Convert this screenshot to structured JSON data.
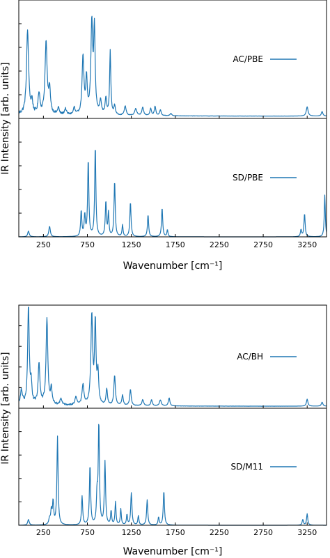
{
  "chart_data": [
    {
      "type": "line",
      "figure_group": "top",
      "xlabel": "Wavenumber [cm⁻¹]",
      "ylabel": "IR Intensity [arb. units]",
      "xlim": [
        -30,
        3470
      ],
      "xticks": [
        250,
        750,
        1250,
        1750,
        2250,
        2750,
        3250
      ],
      "tick_labels": [
        "250",
        "750",
        "1250",
        "1750",
        "2250",
        "2750",
        "3250"
      ],
      "panels": [
        {
          "legend": "AC/PBE",
          "legend_position": "right",
          "line_color": "#1f77b4",
          "ylim": [
            0,
            1.0
          ],
          "baseline": 0.02,
          "noise": 0.03,
          "peaks": [
            [
              70,
              0.72,
              14
            ],
            [
              120,
              0.1,
              10
            ],
            [
              200,
              0.18,
              12
            ],
            [
              280,
              0.62,
              14
            ],
            [
              320,
              0.2,
              12
            ],
            [
              420,
              0.06,
              10
            ],
            [
              500,
              0.05,
              12
            ],
            [
              600,
              0.06,
              10
            ],
            [
              700,
              0.5,
              12
            ],
            [
              740,
              0.3,
              10
            ],
            [
              800,
              0.78,
              12
            ],
            [
              830,
              0.72,
              10
            ],
            [
              900,
              0.12,
              12
            ],
            [
              960,
              0.14,
              10
            ],
            [
              1010,
              0.55,
              8
            ],
            [
              1060,
              0.08,
              10
            ],
            [
              1180,
              0.08,
              12
            ],
            [
              1300,
              0.06,
              14
            ],
            [
              1380,
              0.07,
              12
            ],
            [
              1470,
              0.06,
              10
            ],
            [
              1520,
              0.08,
              10
            ],
            [
              1580,
              0.05,
              10
            ],
            [
              1700,
              0.02,
              12
            ],
            [
              3250,
              0.08,
              12
            ],
            [
              3420,
              0.04,
              10
            ]
          ]
        },
        {
          "legend": "SD/PBE",
          "legend_position": "right",
          "line_color": "#1f77b4",
          "ylim": [
            0,
            1.0
          ],
          "baseline": 0.0,
          "noise": 0.0,
          "peaks": [
            [
              80,
              0.05,
              10
            ],
            [
              320,
              0.09,
              10
            ],
            [
              680,
              0.22,
              8
            ],
            [
              720,
              0.18,
              8
            ],
            [
              760,
              0.66,
              8
            ],
            [
              840,
              0.78,
              8
            ],
            [
              960,
              0.3,
              8
            ],
            [
              990,
              0.2,
              7
            ],
            [
              1060,
              0.48,
              8
            ],
            [
              1150,
              0.1,
              7
            ],
            [
              1240,
              0.3,
              8
            ],
            [
              1440,
              0.19,
              8
            ],
            [
              1600,
              0.25,
              8
            ],
            [
              1660,
              0.06,
              7
            ],
            [
              3180,
              0.06,
              8
            ],
            [
              3220,
              0.2,
              8
            ],
            [
              3450,
              0.36,
              7
            ]
          ]
        }
      ]
    },
    {
      "type": "line",
      "figure_group": "bottom",
      "xlabel": "Wavenumber [cm⁻¹]",
      "ylabel": "IR Intensity [arb. units]",
      "xlim": [
        -30,
        3470
      ],
      "xticks": [
        250,
        750,
        1250,
        1750,
        2250,
        2750,
        3250
      ],
      "tick_labels": [
        "250",
        "750",
        "1250",
        "1750",
        "2250",
        "2750",
        "3250"
      ],
      "panels": [
        {
          "legend": "AC/BH",
          "legend_position": "right",
          "line_color": "#1f77b4",
          "ylim": [
            0,
            1.0
          ],
          "baseline": 0.02,
          "noise": 0.03,
          "peaks": [
            [
              0,
              0.14,
              14
            ],
            [
              80,
              1.0,
              10
            ],
            [
              110,
              0.2,
              10
            ],
            [
              200,
              0.4,
              12
            ],
            [
              290,
              0.85,
              12
            ],
            [
              340,
              0.15,
              10
            ],
            [
              450,
              0.06,
              12
            ],
            [
              620,
              0.08,
              12
            ],
            [
              700,
              0.2,
              12
            ],
            [
              800,
              0.88,
              12
            ],
            [
              840,
              0.8,
              10
            ],
            [
              870,
              0.3,
              10
            ],
            [
              970,
              0.16,
              10
            ],
            [
              1060,
              0.3,
              10
            ],
            [
              1150,
              0.1,
              10
            ],
            [
              1240,
              0.16,
              10
            ],
            [
              1380,
              0.06,
              12
            ],
            [
              1480,
              0.06,
              10
            ],
            [
              1580,
              0.06,
              12
            ],
            [
              1680,
              0.08,
              10
            ],
            [
              3250,
              0.07,
              10
            ],
            [
              3420,
              0.04,
              10
            ]
          ]
        },
        {
          "legend": "SD/M11",
          "legend_position": "right",
          "line_color": "#1f77b4",
          "ylim": [
            0,
            1.0
          ],
          "baseline": 0.0,
          "noise": 0.0,
          "peaks": [
            [
              80,
              0.05,
              10
            ],
            [
              320,
              0.05,
              10
            ],
            [
              340,
              0.12,
              8
            ],
            [
              360,
              0.2,
              8
            ],
            [
              410,
              0.77,
              8
            ],
            [
              690,
              0.25,
              8
            ],
            [
              780,
              0.52,
              8
            ],
            [
              860,
              0.24,
              8
            ],
            [
              880,
              0.88,
              8
            ],
            [
              950,
              0.55,
              8
            ],
            [
              1020,
              0.12,
              7
            ],
            [
              1070,
              0.2,
              7
            ],
            [
              1130,
              0.14,
              7
            ],
            [
              1200,
              0.09,
              7
            ],
            [
              1250,
              0.28,
              8
            ],
            [
              1330,
              0.08,
              7
            ],
            [
              1430,
              0.22,
              8
            ],
            [
              1560,
              0.07,
              7
            ],
            [
              1620,
              0.3,
              8
            ],
            [
              3200,
              0.05,
              8
            ],
            [
              3250,
              0.1,
              8
            ]
          ]
        }
      ]
    }
  ]
}
